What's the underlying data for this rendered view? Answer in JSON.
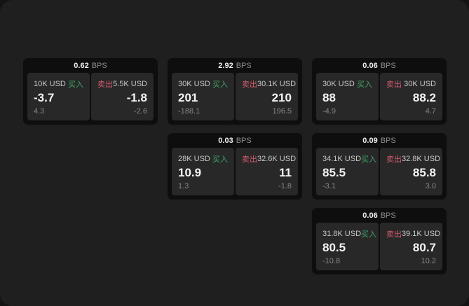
{
  "page": {
    "background_outer": "#141414",
    "background_inner": "#1f1f1f"
  },
  "labels": {
    "bps_unit": "BPS",
    "buy": "买入",
    "sell": "卖出"
  },
  "colors": {
    "buy_green": "#3fa56a",
    "sell_red": "#d65b6c",
    "card_background": "#0e0e0e",
    "panel_background": "#282828",
    "value_text": "#f4f4f4",
    "amount_text": "#c7c7c7",
    "sub_text": "#858585"
  },
  "cards": [
    {
      "bps": "0.62",
      "buy": {
        "amount": "10K USD",
        "value": "-3.7",
        "sub": "4.3"
      },
      "sell": {
        "amount": "5.5K USD",
        "value": "-1.8",
        "sub": "-2.6"
      }
    },
    {
      "bps": "2.92",
      "buy": {
        "amount": "30K USD",
        "value": "201",
        "sub": "-188.1"
      },
      "sell": {
        "amount": "30.1K USD",
        "value": "210",
        "sub": "196.5"
      }
    },
    {
      "bps": "0.06",
      "buy": {
        "amount": "30K USD",
        "value": "88",
        "sub": "-4.9"
      },
      "sell": {
        "amount": "30K USD",
        "value": "88.2",
        "sub": "4.7"
      }
    },
    {
      "bps": "0.03",
      "buy": {
        "amount": "28K USD",
        "value": "10.9",
        "sub": "1.3"
      },
      "sell": {
        "amount": "32.6K USD",
        "value": "11",
        "sub": "-1.8"
      }
    },
    {
      "bps": "0.09",
      "buy": {
        "amount": "34.1K USD",
        "value": "85.5",
        "sub": "-3.1"
      },
      "sell": {
        "amount": "32.8K USD",
        "value": "85.8",
        "sub": "3.0"
      }
    },
    {
      "bps": "0.06",
      "buy": {
        "amount": "31.8K USD",
        "value": "80.5",
        "sub": "-10.8"
      },
      "sell": {
        "amount": "39.1K USD",
        "value": "80.7",
        "sub": "10.2"
      }
    }
  ]
}
